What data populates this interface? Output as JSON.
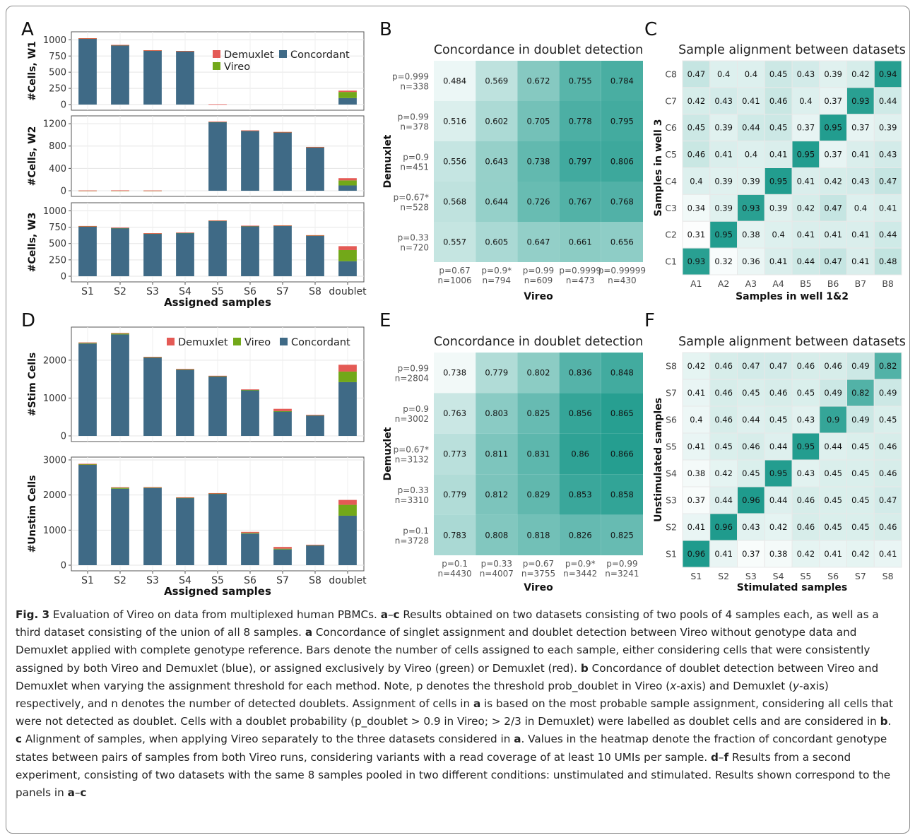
{
  "colors": {
    "concordant": "#3f6a86",
    "vireo": "#72a819",
    "demuxlet": "#e45a55",
    "heat_low": "#ffffff",
    "heat_high": "#1f9b8d",
    "grid": "#e5e5e5",
    "border": "#8a8a8a"
  },
  "panels": {
    "A": "A",
    "B": "B",
    "C": "C",
    "D": "D",
    "E": "E",
    "F": "F"
  },
  "chart_data": [
    {
      "id": "A",
      "type": "bar",
      "stacked": true,
      "xlabel": "Assigned samples",
      "categories": [
        "S1",
        "S2",
        "S3",
        "S4",
        "S5",
        "S6",
        "S7",
        "S8",
        "doublet"
      ],
      "legend": [
        "Demuxlet",
        "Concordant",
        "Vireo"
      ],
      "facets": [
        {
          "ylabel": "#Cells, W1",
          "ylim": [
            0,
            1080
          ],
          "yticks": [
            0,
            250,
            500,
            750,
            1000
          ],
          "series": [
            {
              "name": "Concordant",
              "values": [
                1020,
                915,
                835,
                825,
                0,
                0,
                0,
                0,
                100
              ]
            },
            {
              "name": "Vireo",
              "values": [
                3,
                4,
                2,
                2,
                0,
                0,
                0,
                0,
                95
              ]
            },
            {
              "name": "Demuxlet",
              "values": [
                2,
                2,
                2,
                2,
                6,
                0,
                0,
                0,
                20
              ]
            }
          ]
        },
        {
          "ylabel": "#Cells, W2",
          "ylim": [
            0,
            1290
          ],
          "yticks": [
            0,
            400,
            800,
            1200
          ],
          "series": [
            {
              "name": "Concordant",
              "values": [
                0,
                0,
                0,
                0,
                1230,
                1075,
                1048,
                780,
                95
              ]
            },
            {
              "name": "Vireo",
              "values": [
                2,
                3,
                2,
                0,
                5,
                4,
                3,
                3,
                90
              ]
            },
            {
              "name": "Demuxlet",
              "values": [
                3,
                4,
                3,
                0,
                2,
                2,
                2,
                2,
                40
              ]
            }
          ]
        },
        {
          "ylabel": "#Cells, W3",
          "ylim": [
            0,
            1080
          ],
          "yticks": [
            0,
            250,
            500,
            750,
            1000
          ],
          "series": [
            {
              "name": "Concordant",
              "values": [
                760,
                735,
                650,
                660,
                845,
                765,
                770,
                620,
                230
              ]
            },
            {
              "name": "Vireo",
              "values": [
                5,
                5,
                5,
                5,
                5,
                5,
                5,
                5,
                170
              ]
            },
            {
              "name": "Demuxlet",
              "values": [
                3,
                3,
                3,
                3,
                3,
                3,
                3,
                3,
                60
              ]
            }
          ]
        }
      ]
    },
    {
      "id": "B",
      "type": "heatmap",
      "title": "Concordance in doublet detection",
      "xlabel": "Vireo",
      "ylabel": "Demuxlet",
      "x_labels": [
        [
          "p=0.67",
          "n=1006"
        ],
        [
          "p=0.9*",
          "n=794"
        ],
        [
          "p=0.99",
          "n=609"
        ],
        [
          "p=0.9999",
          "n=473"
        ],
        [
          "p=0.99999",
          "n=430"
        ]
      ],
      "y_labels": [
        [
          "p=0.999",
          "n=338"
        ],
        [
          "p=0.99",
          "n=378"
        ],
        [
          "p=0.9",
          "n=451"
        ],
        [
          "p=0.67*",
          "n=528"
        ],
        [
          "p=0.33",
          "n=720"
        ]
      ],
      "values": [
        [
          "0.484",
          "0.569",
          "0.672",
          "0.755",
          "0.784"
        ],
        [
          "0.516",
          "0.602",
          "0.705",
          "0.778",
          "0.795"
        ],
        [
          "0.556",
          "0.643",
          "0.738",
          "0.797",
          "0.806"
        ],
        [
          "0.568",
          "0.644",
          "0.726",
          "0.767",
          "0.768"
        ],
        [
          "0.557",
          "0.605",
          "0.647",
          "0.661",
          "0.656"
        ]
      ],
      "vmin": 0.45,
      "vmax": 0.86
    },
    {
      "id": "C",
      "type": "heatmap",
      "title": "Sample alignment between datasets",
      "xlabel": "Samples in well 1&2",
      "ylabel": "Samples in well 3",
      "x_labels": [
        "A1",
        "A2",
        "A3",
        "A4",
        "B5",
        "B6",
        "B7",
        "B8"
      ],
      "y_labels": [
        "C8",
        "C7",
        "C6",
        "C5",
        "C4",
        "C3",
        "C2",
        "C1"
      ],
      "values": [
        [
          "0.47",
          "0.4",
          "0.4",
          "0.45",
          "0.43",
          "0.39",
          "0.42",
          "0.94"
        ],
        [
          "0.42",
          "0.43",
          "0.41",
          "0.46",
          "0.4",
          "0.37",
          "0.93",
          "0.44"
        ],
        [
          "0.45",
          "0.39",
          "0.44",
          "0.45",
          "0.37",
          "0.95",
          "0.37",
          "0.39"
        ],
        [
          "0.46",
          "0.41",
          "0.4",
          "0.41",
          "0.95",
          "0.37",
          "0.41",
          "0.43"
        ],
        [
          "0.4",
          "0.39",
          "0.39",
          "0.95",
          "0.41",
          "0.42",
          "0.43",
          "0.47"
        ],
        [
          "0.34",
          "0.39",
          "0.93",
          "0.39",
          "0.42",
          "0.47",
          "0.4",
          "0.41"
        ],
        [
          "0.31",
          "0.95",
          "0.38",
          "0.4",
          "0.41",
          "0.41",
          "0.41",
          "0.44"
        ],
        [
          "0.93",
          "0.32",
          "0.36",
          "0.41",
          "0.44",
          "0.47",
          "0.41",
          "0.48"
        ]
      ],
      "vmin": 0.3,
      "vmax": 0.96
    },
    {
      "id": "D",
      "type": "bar",
      "stacked": true,
      "xlabel": "Assigned samples",
      "categories": [
        "S1",
        "S2",
        "S3",
        "S4",
        "S5",
        "S6",
        "S7",
        "S8",
        "doublet"
      ],
      "legend": [
        "Demuxlet",
        "Vireo",
        "Concordant"
      ],
      "facets": [
        {
          "ylabel": "#Stim Cells",
          "ylim": [
            0,
            2800
          ],
          "yticks": [
            0,
            1000,
            2000
          ],
          "series": [
            {
              "name": "Concordant",
              "values": [
                2440,
                2680,
                2070,
                1745,
                1570,
                1205,
                650,
                545,
                1420
              ]
            },
            {
              "name": "Vireo",
              "values": [
                20,
                25,
                10,
                15,
                10,
                10,
                5,
                5,
                280
              ]
            },
            {
              "name": "Demuxlet",
              "values": [
                10,
                15,
                10,
                10,
                10,
                15,
                60,
                5,
                180
              ]
            }
          ]
        },
        {
          "ylabel": "#Unstim Cells",
          "ylim": [
            0,
            3000
          ],
          "yticks": [
            0,
            1000,
            2000,
            3000
          ],
          "series": [
            {
              "name": "Concordant",
              "values": [
                2860,
                2180,
                2200,
                1915,
                2035,
                900,
                450,
                570,
                1410
              ]
            },
            {
              "name": "Vireo",
              "values": [
                20,
                30,
                15,
                10,
                10,
                20,
                20,
                5,
                310
              ]
            },
            {
              "name": "Demuxlet",
              "values": [
                10,
                10,
                10,
                10,
                10,
                30,
                50,
                5,
                140
              ]
            }
          ]
        }
      ]
    },
    {
      "id": "E",
      "type": "heatmap",
      "title": "Concordance in doublet detection",
      "xlabel": "Vireo",
      "ylabel": "Demuxlet",
      "x_labels": [
        [
          "p=0.1",
          "n=4430"
        ],
        [
          "p=0.33",
          "n=4007"
        ],
        [
          "p=0.67",
          "n=3755"
        ],
        [
          "p=0.9*",
          "n=3442"
        ],
        [
          "p=0.99",
          "n=3241"
        ]
      ],
      "y_labels": [
        [
          "p=0.99",
          "n=2804"
        ],
        [
          "p=0.9",
          "n=3002"
        ],
        [
          "p=0.67*",
          "n=3132"
        ],
        [
          "p=0.33",
          "n=3310"
        ],
        [
          "p=0.1",
          "n=3728"
        ]
      ],
      "values": [
        [
          "0.738",
          "0.779",
          "0.802",
          "0.836",
          "0.848"
        ],
        [
          "0.763",
          "0.803",
          "0.825",
          "0.856",
          "0.865"
        ],
        [
          "0.773",
          "0.811",
          "0.831",
          "0.86",
          "0.866"
        ],
        [
          "0.779",
          "0.812",
          "0.829",
          "0.853",
          "0.858"
        ],
        [
          "0.783",
          "0.808",
          "0.818",
          "0.826",
          "0.825"
        ]
      ],
      "vmin": 0.73,
      "vmax": 0.87
    },
    {
      "id": "F",
      "type": "heatmap",
      "title": "Sample alignment between datasets",
      "xlabel": "Stimulated samples",
      "ylabel": "Unstimulated samples",
      "x_labels": [
        "S1",
        "S2",
        "S3",
        "S4",
        "S5",
        "S6",
        "S7",
        "S8"
      ],
      "y_labels": [
        "S8",
        "S7",
        "S6",
        "S5",
        "S4",
        "S3",
        "S2",
        "S1"
      ],
      "values": [
        [
          "0.42",
          "0.46",
          "0.47",
          "0.47",
          "0.46",
          "0.46",
          "0.49",
          "0.82"
        ],
        [
          "0.41",
          "0.46",
          "0.45",
          "0.46",
          "0.45",
          "0.49",
          "0.82",
          "0.49"
        ],
        [
          "0.4",
          "0.46",
          "0.44",
          "0.45",
          "0.43",
          "0.9",
          "0.49",
          "0.45"
        ],
        [
          "0.41",
          "0.45",
          "0.46",
          "0.44",
          "0.95",
          "0.44",
          "0.45",
          "0.46"
        ],
        [
          "0.38",
          "0.42",
          "0.45",
          "0.95",
          "0.43",
          "0.45",
          "0.45",
          "0.46"
        ],
        [
          "0.37",
          "0.44",
          "0.96",
          "0.44",
          "0.46",
          "0.45",
          "0.45",
          "0.47"
        ],
        [
          "0.41",
          "0.96",
          "0.43",
          "0.42",
          "0.46",
          "0.45",
          "0.45",
          "0.46"
        ],
        [
          "0.96",
          "0.41",
          "0.37",
          "0.38",
          "0.42",
          "0.41",
          "0.42",
          "0.41"
        ]
      ],
      "vmin": 0.35,
      "vmax": 0.96
    }
  ],
  "caption": {
    "label": "Fig. 3",
    "segments": [
      {
        "t": "Fig. 3",
        "b": true
      },
      {
        "t": " Evaluation of Vireo on data from multiplexed human PBMCs. "
      },
      {
        "t": "a",
        "b": true
      },
      {
        "t": "–"
      },
      {
        "t": "c",
        "b": true
      },
      {
        "t": " Results obtained on two datasets consisting of two pools of 4 samples each, as well as a third dataset consisting of the union of all 8 samples. "
      },
      {
        "t": "a",
        "b": true
      },
      {
        "t": " Concordance of singlet assignment and doublet detection between Vireo without genotype data and Demuxlet applied with complete genotype reference. Bars denote the number of cells assigned to each sample, either considering cells that were consistently assigned by both Vireo and Demuxlet (blue), or assigned exclusively by Vireo (green) or Demuxlet (red). "
      },
      {
        "t": "b",
        "b": true
      },
      {
        "t": " Concordance of doublet detection between Vireo and Demuxlet when varying the assignment threshold for each method. Note, p denotes the threshold prob_doublet in Vireo ("
      },
      {
        "t": "x",
        "i": true
      },
      {
        "t": "-axis) and Demuxlet ("
      },
      {
        "t": "y",
        "i": true
      },
      {
        "t": "-axis) respectively, and n denotes the number of detected doublets. Assignment of cells in "
      },
      {
        "t": "a",
        "b": true
      },
      {
        "t": " is based on the most probable sample assignment, considering all cells that were not detected as doublet. Cells with a doublet probability (p_doublet > 0.9 in Vireo; > 2/3 in Demuxlet) were labelled as doublet cells and are considered in "
      },
      {
        "t": "b",
        "b": true
      },
      {
        "t": ". "
      },
      {
        "t": "c",
        "b": true
      },
      {
        "t": " Alignment of samples, when applying Vireo separately to the three datasets considered in "
      },
      {
        "t": "a",
        "b": true
      },
      {
        "t": ". Values in the heatmap denote the fraction of concordant genotype states between pairs of samples from both Vireo runs, considering variants with a read coverage of at least 10 UMIs per sample. "
      },
      {
        "t": "d",
        "b": true
      },
      {
        "t": "–"
      },
      {
        "t": "f",
        "b": true
      },
      {
        "t": " Results from a second experiment, consisting of two datasets with the same 8 samples pooled in two different conditions: unstimulated and stimulated. Results shown correspond to the panels in "
      },
      {
        "t": "a",
        "b": true
      },
      {
        "t": "–"
      },
      {
        "t": "c",
        "b": true
      }
    ]
  }
}
